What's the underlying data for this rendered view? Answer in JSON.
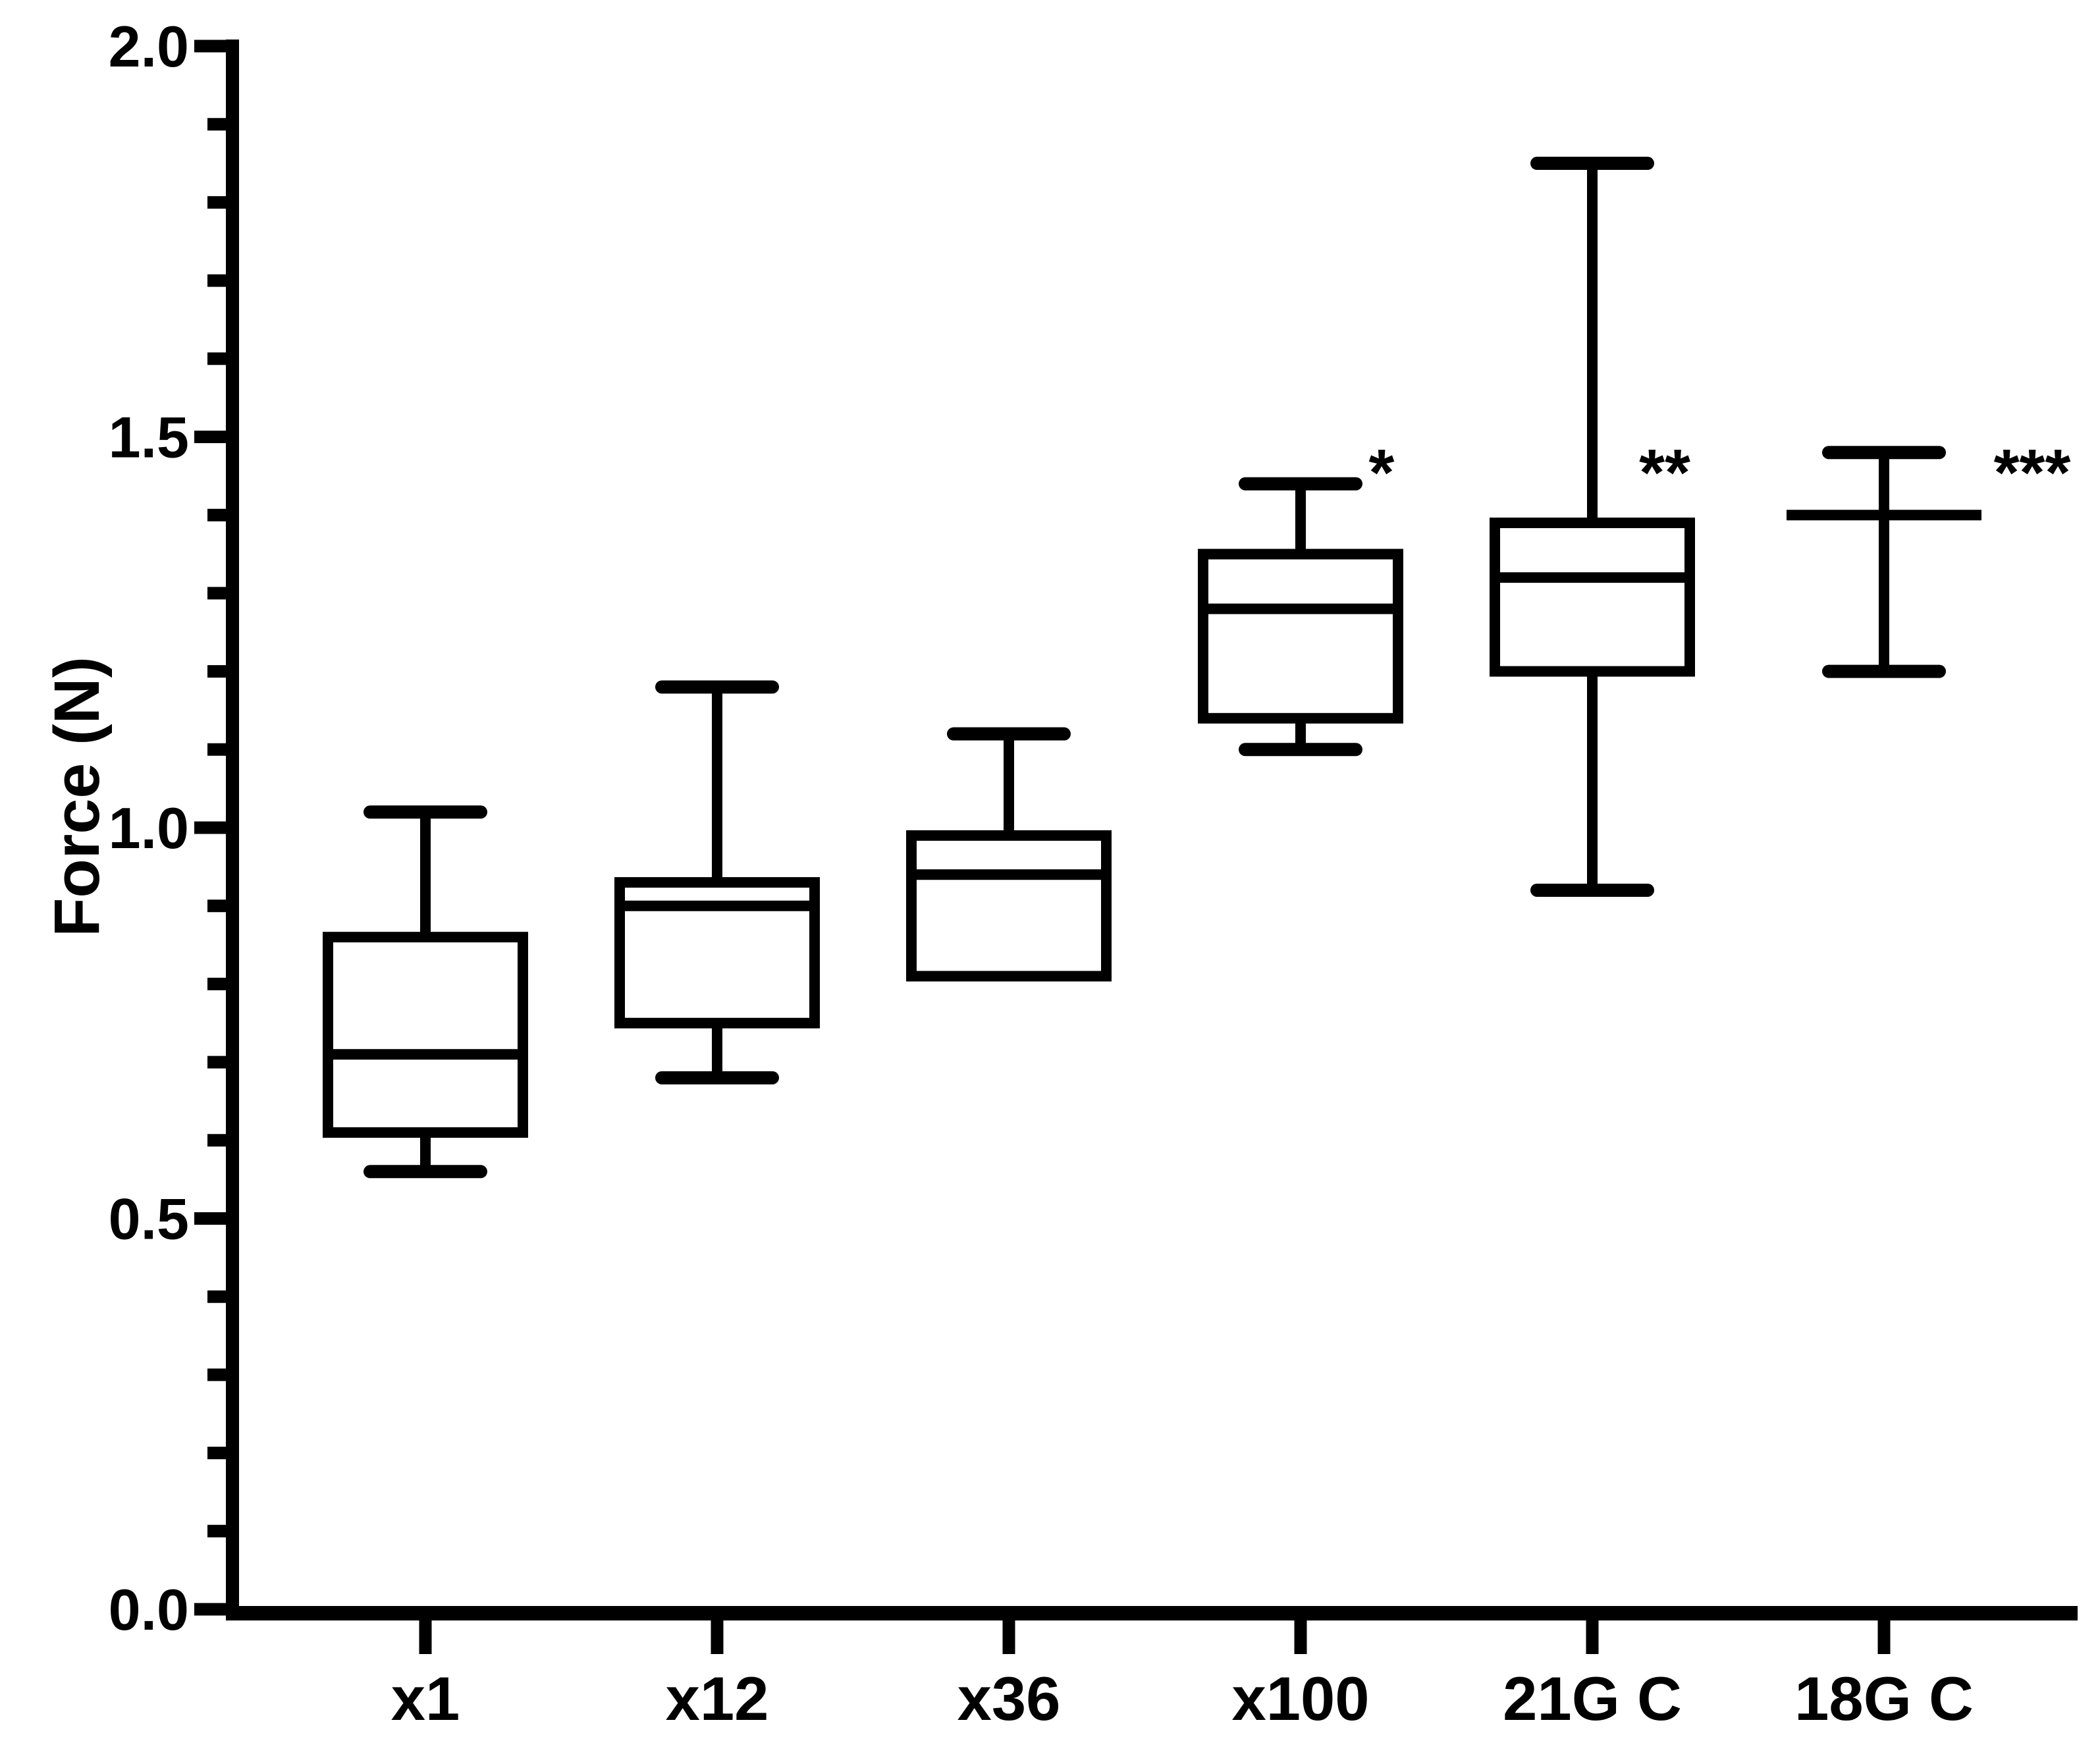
{
  "figure": {
    "background_color": "#ffffff",
    "ink_color": "#000000"
  },
  "chart_data": {
    "type": "box",
    "title": "",
    "xlabel": "",
    "ylabel": "Force (N)",
    "ylim": [
      0.0,
      2.0
    ],
    "grid": false,
    "legend_position": "none",
    "y_tick_values": [
      0.0,
      0.5,
      1.0,
      1.5,
      2.0
    ],
    "y_tick_labels": [
      "0.0",
      "0.5",
      "1.0",
      "1.5",
      "2.0"
    ],
    "y_minor_tick_step": 0.1,
    "categories": [
      "x1",
      "x12",
      "x36",
      "x100",
      "21G C",
      "18G C"
    ],
    "series": [
      {
        "name": "x1",
        "min": 0.56,
        "q1": 0.61,
        "median": 0.71,
        "q3": 0.86,
        "max": 1.02,
        "annotation": ""
      },
      {
        "name": "x12",
        "min": 0.68,
        "q1": 0.75,
        "median": 0.9,
        "q3": 0.93,
        "max": 1.18,
        "annotation": ""
      },
      {
        "name": "x36",
        "min": 0.81,
        "q1": 0.81,
        "median": 0.94,
        "q3": 0.99,
        "max": 1.12,
        "annotation": ""
      },
      {
        "name": "x100",
        "min": 1.1,
        "q1": 1.14,
        "median": 1.28,
        "q3": 1.35,
        "max": 1.44,
        "annotation": "*"
      },
      {
        "name": "21G C",
        "min": 0.92,
        "q1": 1.2,
        "median": 1.32,
        "q3": 1.39,
        "max": 1.85,
        "annotation": "**"
      },
      {
        "name": "18G C",
        "min": 1.2,
        "q1": 1.4,
        "median": 1.4,
        "q3": 1.4,
        "max": 1.48,
        "annotation": "***"
      }
    ],
    "annotation_value_level": 1.47
  }
}
